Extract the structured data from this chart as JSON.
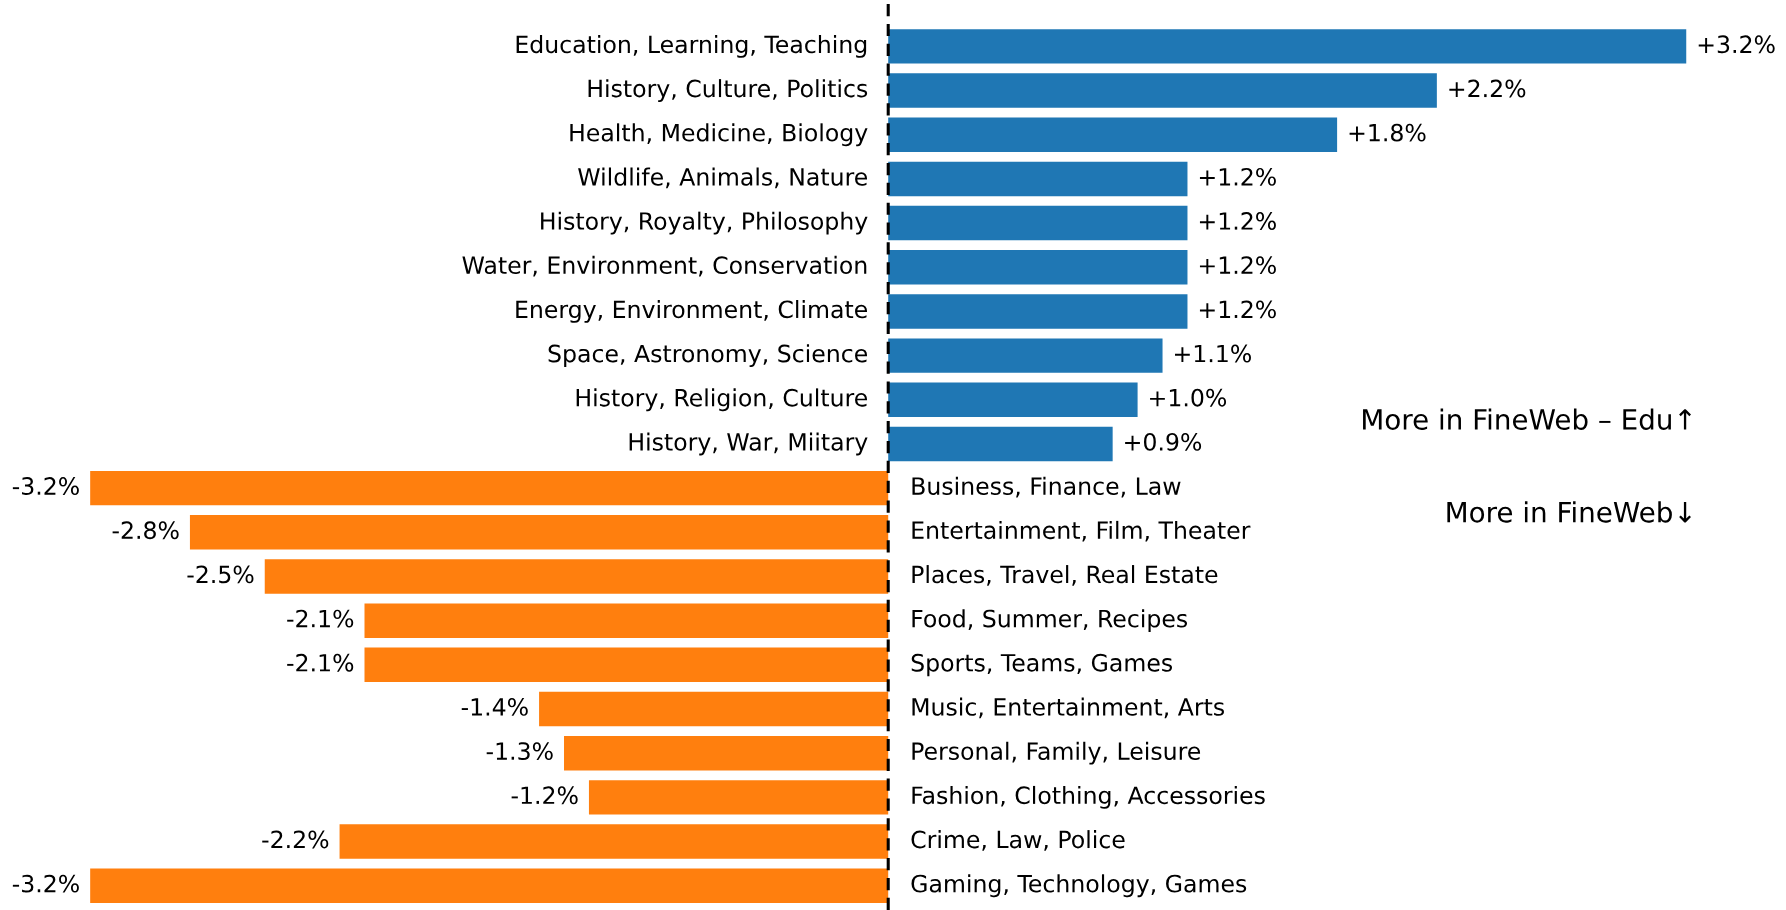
{
  "chart_data": {
    "type": "bar",
    "orientation": "horizontal",
    "categories": [
      "Education, Learning, Teaching",
      "History, Culture, Politics",
      "Health, Medicine, Biology",
      "Wildlife, Animals, Nature",
      "History, Royalty, Philosophy",
      "Water, Environment, Conservation",
      "Energy, Environment, Climate",
      "Space, Astronomy, Science",
      "History, Religion, Culture",
      "History, War, Miitary",
      "Business, Finance, Law",
      "Entertainment, Film, Theater",
      "Places, Travel, Real Estate",
      "Food, Summer, Recipes",
      "Sports, Teams, Games",
      "Music, Entertainment, Arts",
      "Personal, Family, Leisure",
      "Fashion, Clothing, Accessories",
      "Crime, Law, Police",
      "Gaming, Technology, Games"
    ],
    "values": [
      3.2,
      2.2,
      1.8,
      1.2,
      1.2,
      1.2,
      1.2,
      1.1,
      1.0,
      0.9,
      -3.2,
      -2.8,
      -2.5,
      -2.1,
      -2.1,
      -1.4,
      -1.3,
      -1.2,
      -2.2,
      -3.2
    ],
    "value_labels": [
      "+3.2%",
      "+2.2%",
      "+1.8%",
      "+1.2%",
      "+1.2%",
      "+1.2%",
      "+1.2%",
      "+1.1%",
      "+1.0%",
      "+0.9%",
      "-3.2%",
      "-2.8%",
      "-2.5%",
      "-2.1%",
      "-2.1%",
      "-1.4%",
      "-1.3%",
      "-1.2%",
      "-2.2%",
      "-3.2%"
    ],
    "colors": [
      "#1f77b4",
      "#1f77b4",
      "#1f77b4",
      "#1f77b4",
      "#1f77b4",
      "#1f77b4",
      "#1f77b4",
      "#1f77b4",
      "#1f77b4",
      "#1f77b4",
      "#ff7f0e",
      "#ff7f0e",
      "#ff7f0e",
      "#ff7f0e",
      "#ff7f0e",
      "#ff7f0e",
      "#ff7f0e",
      "#ff7f0e",
      "#ff7f0e",
      "#ff7f0e"
    ],
    "ref_lines": [
      {
        "axis": "x",
        "value": 0,
        "color": "#000000",
        "line_style": "dashed"
      }
    ],
    "annotations": [
      "More in FineWeb – Edu↑",
      "More in FineWeb↓"
    ],
    "legend": false
  }
}
